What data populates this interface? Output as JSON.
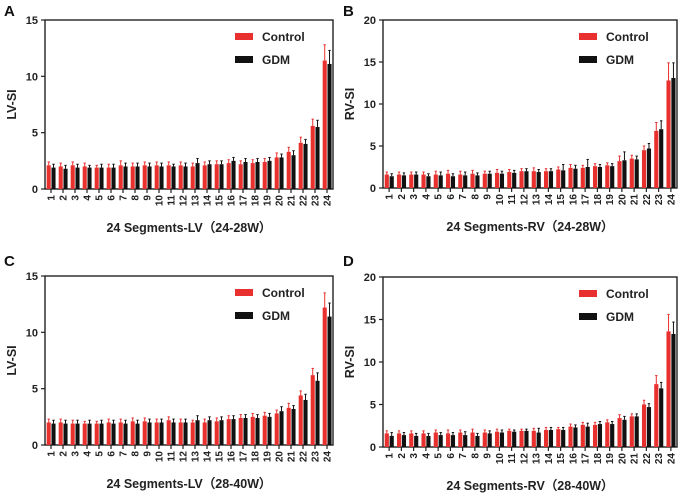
{
  "colors": {
    "control": "#e8312f",
    "gdm": "#111111",
    "axis": "#222222"
  },
  "legend": [
    "Control",
    "GDM"
  ],
  "chart_data": [
    {
      "type": "bar",
      "panel": "A",
      "xlabel": "24 Segments-LV（24-28W）",
      "ylabel": "LV-SI",
      "ylim": [
        0,
        15
      ],
      "yticks": [
        0,
        5,
        10,
        15
      ],
      "categories": [
        "1",
        "2",
        "3",
        "4",
        "5",
        "6",
        "7",
        "8",
        "9",
        "10",
        "11",
        "12",
        "13",
        "14",
        "15",
        "16",
        "17",
        "18",
        "19",
        "20",
        "21",
        "22",
        "23",
        "24"
      ],
      "series": [
        {
          "name": "Control",
          "values": [
            2.1,
            2.0,
            2.1,
            2.0,
            1.9,
            1.9,
            2.1,
            2.0,
            2.1,
            2.1,
            2.1,
            2.1,
            2.0,
            2.1,
            2.2,
            2.3,
            2.2,
            2.3,
            2.4,
            2.8,
            3.3,
            4.1,
            5.6,
            11.4
          ],
          "errors": [
            0.3,
            0.3,
            0.3,
            0.3,
            0.2,
            0.3,
            0.4,
            0.3,
            0.3,
            0.3,
            0.3,
            0.3,
            0.3,
            0.3,
            0.3,
            0.3,
            0.3,
            0.3,
            0.3,
            0.4,
            0.4,
            0.5,
            0.6,
            1.4
          ]
        },
        {
          "name": "GDM",
          "values": [
            1.9,
            1.8,
            1.9,
            1.9,
            1.9,
            1.9,
            2.0,
            2.0,
            2.0,
            2.0,
            2.0,
            2.0,
            2.3,
            2.2,
            2.2,
            2.5,
            2.4,
            2.4,
            2.5,
            2.8,
            3.0,
            4.0,
            5.5,
            11.1
          ],
          "errors": [
            0.3,
            0.3,
            0.3,
            0.2,
            0.3,
            0.3,
            0.3,
            0.3,
            0.3,
            0.3,
            0.2,
            0.3,
            0.4,
            0.3,
            0.3,
            0.3,
            0.3,
            0.3,
            0.3,
            0.3,
            0.4,
            0.4,
            0.6,
            1.2
          ]
        }
      ]
    },
    {
      "type": "bar",
      "panel": "B",
      "xlabel": "24 Segments-RV（24-28W）",
      "ylabel": "RV-SI",
      "ylim": [
        0,
        20
      ],
      "yticks": [
        0,
        5,
        10,
        15,
        20
      ],
      "categories": [
        "1",
        "2",
        "3",
        "4",
        "5",
        "6",
        "7",
        "8",
        "9",
        "10",
        "11",
        "12",
        "13",
        "14",
        "15",
        "16",
        "17",
        "18",
        "19",
        "20",
        "21",
        "22",
        "23",
        "24"
      ],
      "series": [
        {
          "name": "Control",
          "values": [
            1.6,
            1.6,
            1.6,
            1.6,
            1.6,
            1.7,
            1.6,
            1.7,
            1.7,
            1.8,
            1.9,
            2.0,
            2.0,
            2.0,
            2.2,
            2.4,
            2.4,
            2.6,
            2.7,
            3.2,
            3.5,
            4.5,
            6.8,
            12.8
          ],
          "errors": [
            0.3,
            0.3,
            0.3,
            0.3,
            0.4,
            0.4,
            0.4,
            0.4,
            0.3,
            0.4,
            0.3,
            0.3,
            0.4,
            0.3,
            0.3,
            0.4,
            0.3,
            0.3,
            0.3,
            0.6,
            0.4,
            0.5,
            1.0,
            2.1
          ]
        },
        {
          "name": "GDM",
          "values": [
            1.4,
            1.5,
            1.6,
            1.4,
            1.5,
            1.4,
            1.5,
            1.5,
            1.7,
            1.7,
            1.8,
            2.0,
            1.9,
            2.0,
            2.1,
            2.3,
            2.5,
            2.5,
            2.6,
            3.3,
            3.4,
            4.7,
            7.0,
            13.1
          ],
          "errors": [
            0.3,
            0.3,
            0.3,
            0.3,
            0.4,
            0.3,
            0.4,
            0.3,
            0.3,
            0.3,
            0.3,
            0.3,
            0.3,
            0.3,
            0.7,
            0.4,
            0.9,
            0.3,
            0.3,
            1.0,
            0.4,
            0.6,
            1.0,
            1.8
          ]
        }
      ]
    },
    {
      "type": "bar",
      "panel": "C",
      "xlabel": "24 Segments-LV（28-40W）",
      "ylabel": "LV-SI",
      "ylim": [
        0,
        15
      ],
      "yticks": [
        0,
        5,
        10,
        15
      ],
      "categories": [
        "1",
        "2",
        "3",
        "4",
        "5",
        "6",
        "7",
        "8",
        "9",
        "10",
        "11",
        "12",
        "13",
        "14",
        "15",
        "16",
        "17",
        "18",
        "19",
        "20",
        "21",
        "22",
        "23",
        "24"
      ],
      "series": [
        {
          "name": "Control",
          "values": [
            2.0,
            2.0,
            1.9,
            1.9,
            1.9,
            2.0,
            2.0,
            2.1,
            2.1,
            2.0,
            2.2,
            2.0,
            2.0,
            2.0,
            2.1,
            2.3,
            2.4,
            2.5,
            2.6,
            2.8,
            3.3,
            4.4,
            6.2,
            12.2
          ],
          "errors": [
            0.3,
            0.3,
            0.3,
            0.2,
            0.2,
            0.3,
            0.3,
            0.3,
            0.3,
            0.3,
            0.3,
            0.3,
            0.2,
            0.3,
            0.3,
            0.3,
            0.3,
            0.3,
            0.3,
            0.3,
            0.4,
            0.4,
            0.6,
            1.3
          ]
        },
        {
          "name": "GDM",
          "values": [
            1.9,
            1.9,
            1.9,
            1.9,
            1.9,
            1.9,
            1.9,
            1.9,
            2.0,
            2.0,
            2.0,
            2.0,
            2.2,
            2.2,
            2.2,
            2.3,
            2.4,
            2.4,
            2.5,
            3.0,
            3.2,
            4.0,
            5.7,
            11.4
          ],
          "errors": [
            0.3,
            0.3,
            0.3,
            0.3,
            0.3,
            0.3,
            0.3,
            0.3,
            0.3,
            0.3,
            0.3,
            0.3,
            0.4,
            0.3,
            0.3,
            0.3,
            0.3,
            0.3,
            0.3,
            0.4,
            0.3,
            0.5,
            0.7,
            1.2
          ]
        }
      ]
    },
    {
      "type": "bar",
      "panel": "D",
      "xlabel": "24 Segments-RV（28-40W）",
      "ylabel": "RV-SI",
      "ylim": [
        0,
        20
      ],
      "yticks": [
        0,
        5,
        10,
        15,
        20
      ],
      "categories": [
        "1",
        "2",
        "3",
        "4",
        "5",
        "6",
        "7",
        "8",
        "9",
        "10",
        "11",
        "12",
        "13",
        "14",
        "15",
        "16",
        "17",
        "18",
        "19",
        "20",
        "21",
        "22",
        "23",
        "24"
      ],
      "series": [
        {
          "name": "Control",
          "values": [
            1.6,
            1.6,
            1.6,
            1.6,
            1.7,
            1.6,
            1.7,
            1.7,
            1.7,
            1.8,
            1.9,
            1.9,
            1.9,
            2.0,
            2.1,
            2.4,
            2.6,
            2.6,
            2.9,
            3.4,
            3.6,
            5.0,
            7.4,
            13.6
          ],
          "errors": [
            0.3,
            0.3,
            0.3,
            0.3,
            0.3,
            0.4,
            0.3,
            0.4,
            0.3,
            0.3,
            0.2,
            0.2,
            0.3,
            0.3,
            0.2,
            0.3,
            0.3,
            0.3,
            0.3,
            0.4,
            0.3,
            0.5,
            1.0,
            2.0
          ]
        },
        {
          "name": "GDM",
          "values": [
            1.3,
            1.4,
            1.3,
            1.3,
            1.4,
            1.4,
            1.4,
            1.3,
            1.6,
            1.7,
            1.8,
            1.9,
            1.7,
            2.0,
            2.0,
            2.3,
            2.4,
            2.7,
            2.7,
            3.2,
            3.6,
            4.7,
            6.9,
            13.3
          ],
          "errors": [
            0.4,
            0.3,
            0.3,
            0.3,
            0.3,
            0.3,
            0.4,
            0.3,
            0.3,
            0.3,
            0.2,
            0.2,
            0.5,
            0.3,
            0.3,
            0.3,
            0.4,
            0.3,
            0.3,
            0.4,
            0.3,
            0.4,
            0.7,
            1.4
          ]
        }
      ]
    }
  ]
}
